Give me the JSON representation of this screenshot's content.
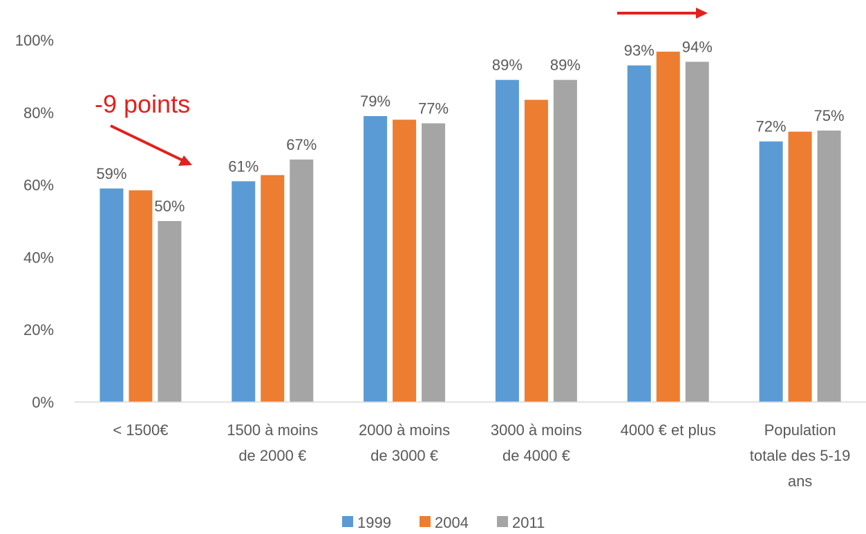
{
  "chart_data": {
    "type": "bar",
    "title": "",
    "xlabel": "",
    "ylabel": "",
    "ylim": [
      0,
      100
    ],
    "y_ticks": [
      "0%",
      "20%",
      "40%",
      "60%",
      "80%",
      "100%"
    ],
    "y_tick_values": [
      0,
      20,
      40,
      60,
      80,
      100
    ],
    "grid": false,
    "legend_position": "bottom",
    "categories": [
      [
        "< 1500€"
      ],
      [
        "1500 à moins",
        "de 2000 €"
      ],
      [
        "2000 à moins",
        "de 3000 €"
      ],
      [
        "3000 à moins",
        "de 4000 €"
      ],
      [
        "4000 € et plus"
      ],
      [
        "Population",
        "totale des 5-19",
        "ans"
      ]
    ],
    "series": [
      {
        "name": "1999",
        "color": "#5b9bd5",
        "values": [
          59,
          61,
          79,
          89,
          93,
          72
        ],
        "labels": [
          "59%",
          "61%",
          "79%",
          "89%",
          "93%",
          "72%"
        ]
      },
      {
        "name": "2004",
        "color": "#ed7d31",
        "values": [
          58.5,
          62.7,
          78,
          83.5,
          96.8,
          74.7
        ],
        "labels": [
          "",
          "",
          "",
          "",
          "",
          ""
        ]
      },
      {
        "name": "2011",
        "color": "#a5a5a5",
        "values": [
          50,
          67,
          77,
          89,
          94,
          75
        ],
        "labels": [
          "50%",
          "67%",
          "77%",
          "89%",
          "94%",
          "75%"
        ]
      }
    ],
    "annotations": [
      {
        "text": "-9 points",
        "color": "#e3201b"
      }
    ]
  }
}
